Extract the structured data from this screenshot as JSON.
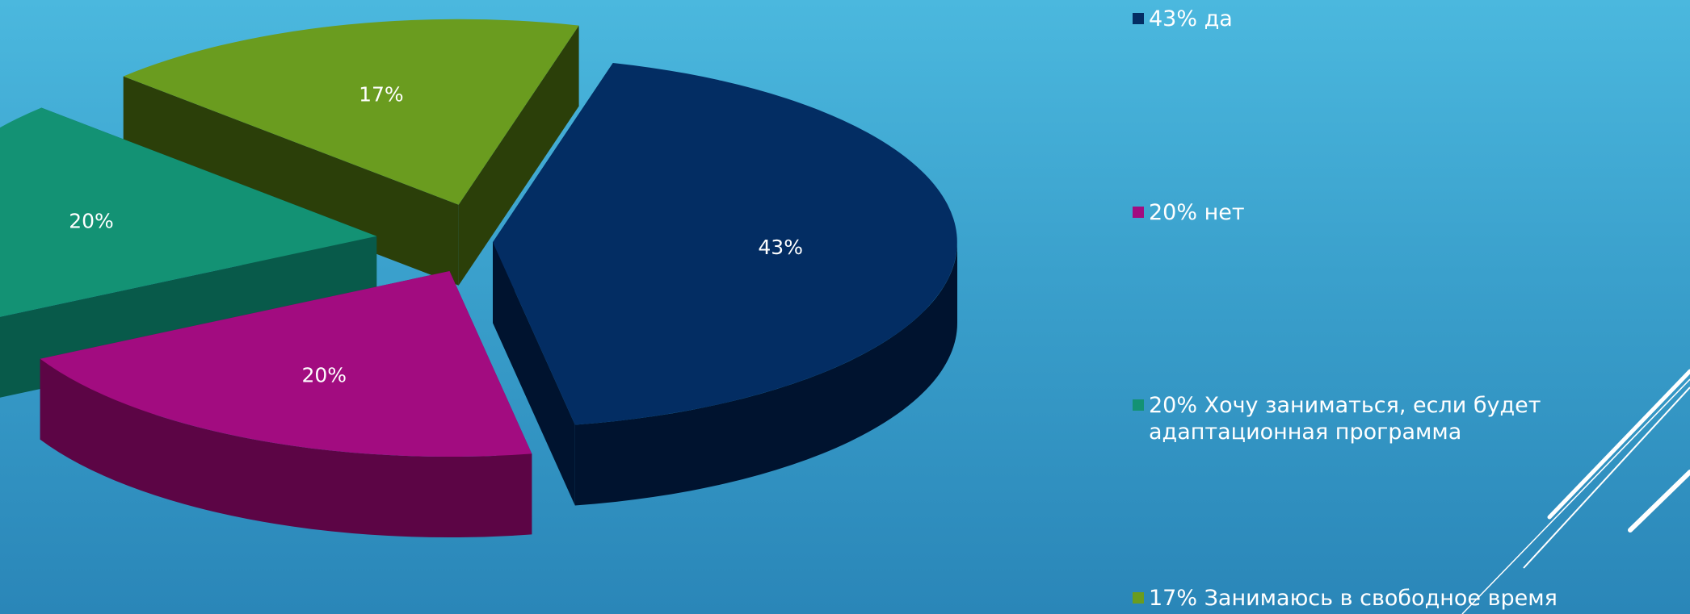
{
  "chart_data": {
    "type": "pie",
    "style": "3d-exploded",
    "legend_placement": "right",
    "slices": [
      {
        "value": 43,
        "data_label": "43%",
        "legend": "43% да",
        "color": "#032d63",
        "side_color": "#00132f"
      },
      {
        "value": 20,
        "data_label": "20%",
        "legend": "20% нет",
        "color": "#a20c80",
        "side_color": "#5c0545"
      },
      {
        "value": 20,
        "data_label": "20%",
        "legend": "20% Хочу заниматься, если будет адаптационная программа",
        "color": "#139274",
        "side_color": "#085a4a"
      },
      {
        "value": 17,
        "data_label": "17%",
        "legend": "17%  Занимаюсь в свободное время",
        "color": "#6a9c1f",
        "side_color": "#2b3f09"
      }
    ]
  },
  "background": {
    "top": "#4bb8de",
    "bottom": "#2a86b8"
  }
}
